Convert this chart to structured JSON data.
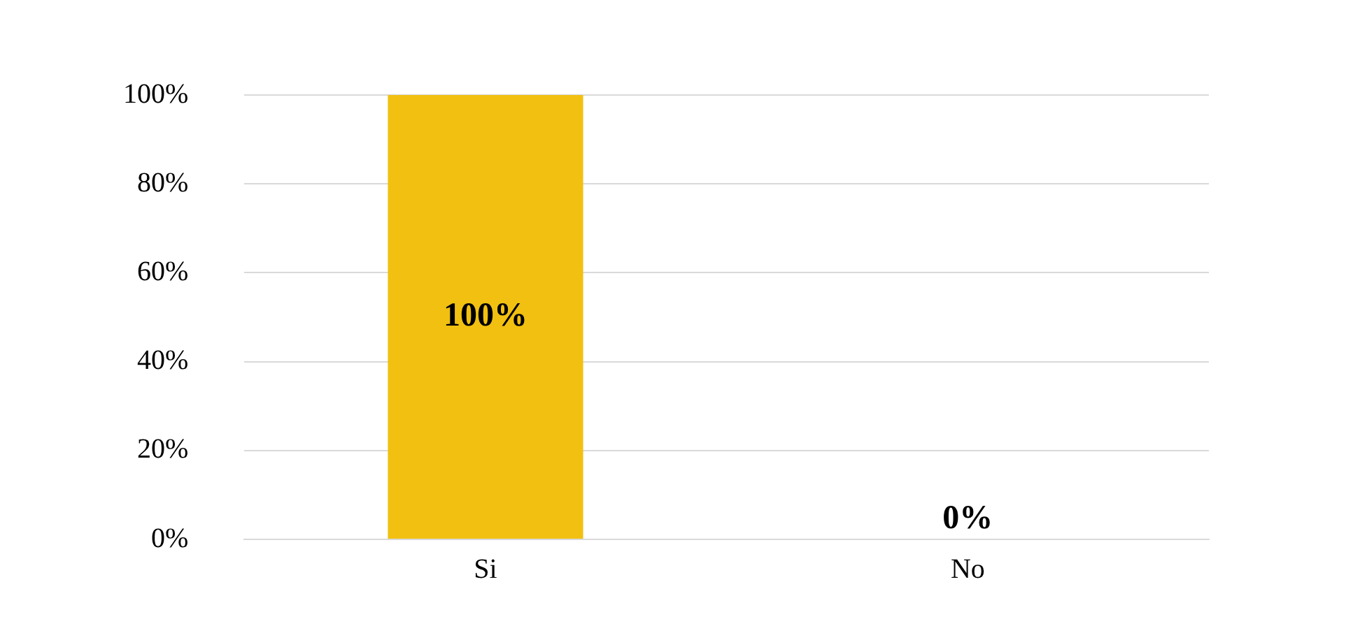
{
  "chart_data": {
    "type": "bar",
    "categories": [
      "Si",
      "No"
    ],
    "values": [
      100,
      0
    ],
    "color": "#f2c010",
    "value_labels": [
      "100%",
      "0%"
    ],
    "ylim": [
      0,
      100
    ],
    "yticks": [
      {
        "value": 0,
        "label": "0%"
      },
      {
        "value": 20,
        "label": "20%"
      },
      {
        "value": 40,
        "label": "40%"
      },
      {
        "value": 60,
        "label": "60%"
      },
      {
        "value": 80,
        "label": "80%"
      },
      {
        "value": 100,
        "label": "100%"
      }
    ],
    "grid": "y",
    "legend": false
  }
}
